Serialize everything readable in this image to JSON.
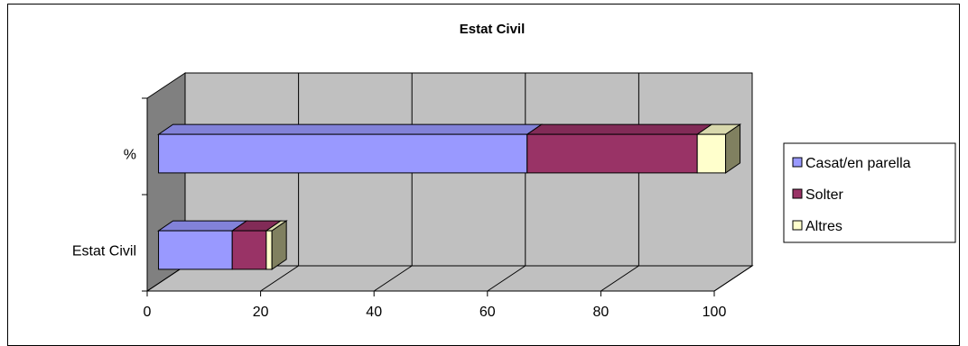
{
  "chart_data": {
    "type": "bar",
    "orientation": "horizontal",
    "stacked": true,
    "three_d": true,
    "title": "Estat Civil",
    "categories": [
      "Estat Civil",
      "%"
    ],
    "series": [
      {
        "name": "Casat/en parella",
        "values": [
          13,
          65
        ],
        "color": "#9999FF"
      },
      {
        "name": "Solter",
        "values": [
          6,
          30
        ],
        "color": "#993366"
      },
      {
        "name": "Altres",
        "values": [
          1,
          5
        ],
        "color": "#FFFFCC"
      }
    ],
    "x_ticks": [
      "0",
      "20",
      "40",
      "60",
      "80",
      "100"
    ],
    "xlim": [
      0,
      100
    ],
    "grid": true,
    "legend_position": "right",
    "colors": {
      "wall": "#C0C0C0",
      "side_wall": "#808080",
      "floor": "#C0C0C0"
    }
  }
}
